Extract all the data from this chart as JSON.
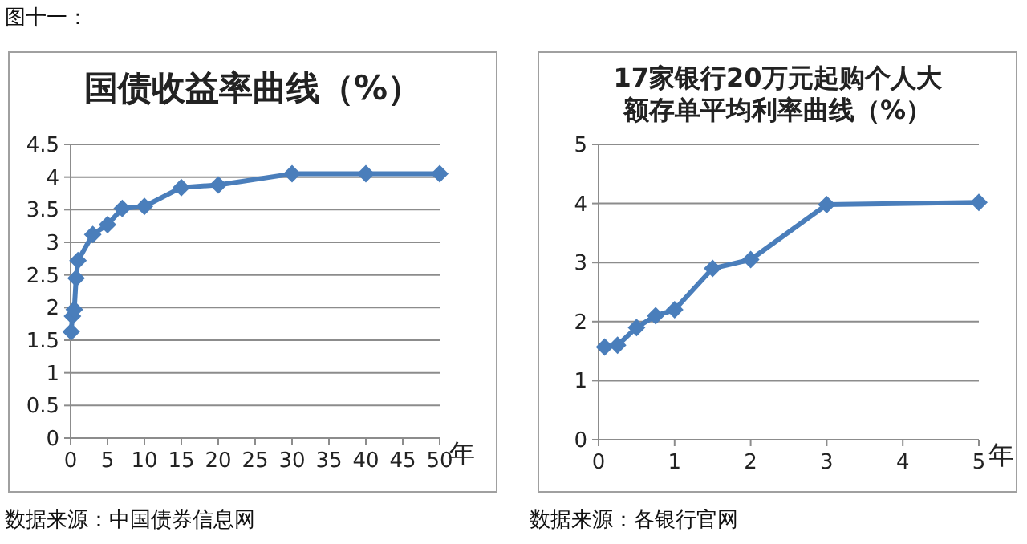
{
  "chart_data": [
    {
      "type": "line",
      "title": "国债收益率曲线（%）",
      "xlabel": "年",
      "annotations": [
        "图十一：",
        "数据来源：中国债券信息网"
      ],
      "x": [
        0.08,
        0.25,
        0.5,
        0.75,
        1,
        3,
        5,
        7,
        10,
        15,
        20,
        30,
        40,
        50
      ],
      "series": [
        {
          "color": "#4a7ebb",
          "values": [
            1.63,
            1.87,
            1.97,
            2.45,
            2.72,
            3.12,
            3.27,
            3.52,
            3.55,
            3.84,
            3.88,
            4.05,
            4.05,
            4.05
          ]
        }
      ],
      "xlim": [
        0,
        50
      ],
      "xticks": [
        0,
        5,
        10,
        15,
        20,
        25,
        30,
        35,
        40,
        45,
        50
      ],
      "ylim": [
        0,
        4.5
      ],
      "yticks": [
        0,
        0.5,
        1,
        1.5,
        2,
        2.5,
        3,
        3.5,
        4,
        4.5
      ],
      "grid": "y",
      "marker": "diamond"
    },
    {
      "type": "line",
      "title": "17家银行20万元起购个人大额存单平均利率曲线（%）",
      "xlabel": "年",
      "annotations": [
        "数据来源：各银行官网"
      ],
      "x": [
        0.08,
        0.25,
        0.5,
        0.75,
        1,
        1.5,
        2,
        3,
        5
      ],
      "series": [
        {
          "color": "#4a7ebb",
          "values": [
            1.57,
            1.6,
            1.9,
            2.1,
            2.2,
            2.9,
            3.05,
            3.98,
            4.02
          ]
        }
      ],
      "xlim": [
        0,
        5
      ],
      "xticks": [
        0,
        1,
        2,
        3,
        4,
        5
      ],
      "ylim": [
        0,
        5
      ],
      "yticks": [
        0,
        1,
        2,
        3,
        4,
        5
      ],
      "grid": "y",
      "marker": "diamond"
    }
  ]
}
